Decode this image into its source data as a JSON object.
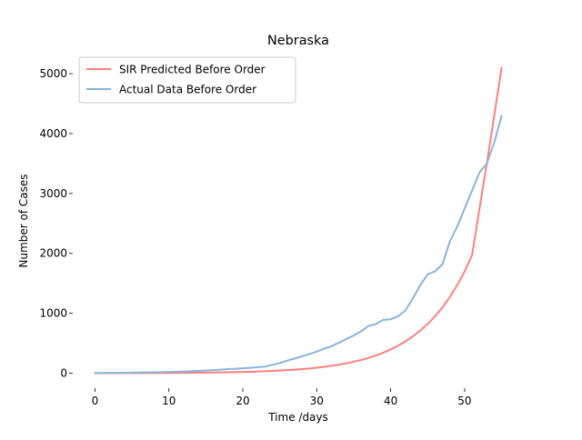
{
  "chart_data": {
    "type": "line",
    "title": "Nebraska",
    "xlabel": "Time /days",
    "ylabel": "Number of Cases",
    "xlim": [
      -3,
      58
    ],
    "ylim": [
      -250,
      5350
    ],
    "xticks": [
      0,
      10,
      20,
      30,
      40,
      50
    ],
    "yticks": [
      0,
      1000,
      2000,
      3000,
      4000,
      5000
    ],
    "grid": false,
    "legend_position": "top-left",
    "series": [
      {
        "name": "SIR Predicted Before Order",
        "color": "#ff7f7f",
        "x": [
          0,
          1,
          2,
          3,
          4,
          5,
          6,
          7,
          8,
          9,
          10,
          11,
          12,
          13,
          14,
          15,
          16,
          17,
          18,
          19,
          20,
          21,
          22,
          23,
          24,
          25,
          26,
          27,
          28,
          29,
          30,
          31,
          32,
          33,
          34,
          35,
          36,
          37,
          38,
          39,
          40,
          41,
          42,
          43,
          44,
          45,
          46,
          47,
          48,
          49,
          50,
          51,
          52,
          53,
          54,
          55
        ],
        "y": [
          1,
          1,
          1,
          2,
          2,
          2,
          3,
          3,
          4,
          4,
          5,
          6,
          7,
          8,
          9,
          10,
          12,
          14,
          16,
          18,
          21,
          24,
          28,
          33,
          38,
          44,
          51,
          59,
          68,
          79,
          92,
          106,
          123,
          142,
          165,
          191,
          221,
          256,
          296,
          343,
          397,
          460,
          532,
          615,
          712,
          823,
          950,
          1100,
          1270,
          1470,
          1700,
          1970,
          2740,
          3500,
          4300,
          5100
        ]
      },
      {
        "name": "Actual Data Before Order",
        "color": "#8ab4d8",
        "x": [
          0,
          1,
          2,
          3,
          4,
          5,
          6,
          7,
          8,
          9,
          10,
          11,
          12,
          13,
          14,
          15,
          16,
          17,
          18,
          19,
          20,
          21,
          22,
          23,
          24,
          25,
          26,
          27,
          28,
          29,
          30,
          31,
          32,
          33,
          34,
          35,
          36,
          37,
          38,
          39,
          40,
          41,
          42,
          43,
          44,
          45,
          46,
          47,
          48,
          49,
          50,
          51,
          52,
          53,
          54,
          55
        ],
        "y": [
          5,
          5,
          6,
          7,
          8,
          10,
          12,
          14,
          16,
          18,
          21,
          24,
          28,
          33,
          38,
          44,
          52,
          60,
          68,
          75,
          82,
          90,
          100,
          110,
          140,
          170,
          210,
          245,
          280,
          320,
          360,
          410,
          450,
          510,
          570,
          630,
          700,
          790,
          820,
          890,
          900,
          950,
          1050,
          1250,
          1470,
          1650,
          1700,
          1820,
          2200,
          2450,
          2750,
          3050,
          3350,
          3500,
          3850,
          4300
        ]
      }
    ]
  }
}
